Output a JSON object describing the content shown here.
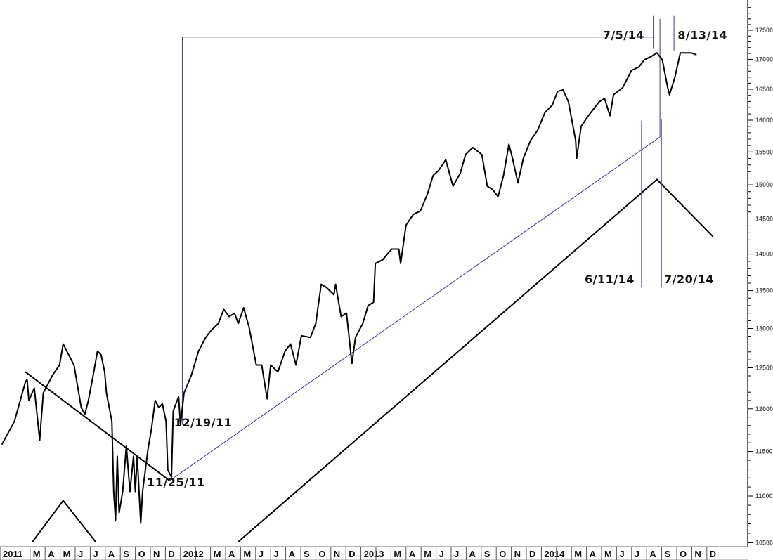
{
  "chart_data": {
    "type": "line",
    "title": "",
    "xlabel": "",
    "ylabel": "",
    "y_scale": "log",
    "ylim": [
      10500,
      17900
    ],
    "xlim": [
      2011.0,
      2015.14
    ],
    "grid": false,
    "y_ticks": [
      10500,
      11000,
      11500,
      12000,
      12500,
      13000,
      13500,
      14000,
      14500,
      15000,
      15500,
      16000,
      16500,
      17000,
      17500
    ],
    "x_tick_labels": [
      "2011",
      "",
      "M",
      "A",
      "M",
      "J",
      "J",
      "A",
      "S",
      "O",
      "N",
      "D",
      "2012",
      "",
      "M",
      "A",
      "M",
      "J",
      "J",
      "A",
      "S",
      "O",
      "N",
      "D",
      "2013",
      "",
      "M",
      "A",
      "M",
      "J",
      "J",
      "A",
      "S",
      "O",
      "N",
      "D",
      "2014",
      "",
      "M",
      "A",
      "M",
      "J",
      "J",
      "A",
      "S",
      "O",
      "N",
      "D"
    ],
    "series": [
      {
        "name": "index",
        "color": "#000000",
        "points": [
          [
            2011.01,
            11580
          ],
          [
            2011.08,
            11850
          ],
          [
            2011.14,
            12320
          ],
          [
            2011.15,
            12360
          ],
          [
            2011.16,
            12100
          ],
          [
            2011.19,
            12250
          ],
          [
            2011.22,
            11630
          ],
          [
            2011.24,
            12190
          ],
          [
            2011.29,
            12405
          ],
          [
            2011.33,
            12535
          ],
          [
            2011.35,
            12800
          ],
          [
            2011.37,
            12710
          ],
          [
            2011.41,
            12535
          ],
          [
            2011.45,
            12015
          ],
          [
            2011.47,
            11935
          ],
          [
            2011.49,
            12100
          ],
          [
            2011.52,
            12450
          ],
          [
            2011.54,
            12710
          ],
          [
            2011.56,
            12665
          ],
          [
            2011.58,
            12450
          ],
          [
            2011.59,
            12190
          ],
          [
            2011.62,
            11850
          ],
          [
            2011.63,
            11050
          ],
          [
            2011.64,
            10740
          ],
          [
            2011.65,
            11445
          ],
          [
            2011.66,
            10820
          ],
          [
            2011.68,
            11050
          ],
          [
            2011.7,
            11565
          ],
          [
            2011.72,
            11050
          ],
          [
            2011.74,
            11445
          ],
          [
            2011.75,
            11050
          ],
          [
            2011.76,
            11445
          ],
          [
            2011.78,
            10705
          ],
          [
            2011.79,
            11050
          ],
          [
            2011.82,
            11525
          ],
          [
            2011.84,
            11770
          ],
          [
            2011.86,
            12100
          ],
          [
            2011.88,
            12015
          ],
          [
            2011.9,
            12060
          ],
          [
            2011.92,
            11850
          ],
          [
            2011.93,
            11290
          ],
          [
            2011.95,
            11210
          ],
          [
            2011.96,
            11975
          ],
          [
            2011.99,
            12145
          ],
          [
            2012.0,
            11810
          ],
          [
            2012.02,
            12190
          ],
          [
            2012.06,
            12405
          ],
          [
            2012.1,
            12710
          ],
          [
            2012.14,
            12885
          ],
          [
            2012.17,
            12975
          ],
          [
            2012.21,
            13065
          ],
          [
            2012.24,
            13250
          ],
          [
            2012.27,
            13155
          ],
          [
            2012.3,
            13200
          ],
          [
            2012.32,
            13065
          ],
          [
            2012.35,
            13270
          ],
          [
            2012.38,
            13020
          ],
          [
            2012.42,
            12535
          ],
          [
            2012.45,
            12535
          ],
          [
            2012.48,
            12120
          ],
          [
            2012.5,
            12535
          ],
          [
            2012.54,
            12450
          ],
          [
            2012.58,
            12710
          ],
          [
            2012.61,
            12800
          ],
          [
            2012.64,
            12535
          ],
          [
            2012.67,
            12905
          ],
          [
            2012.72,
            12885
          ],
          [
            2012.75,
            13065
          ],
          [
            2012.78,
            13585
          ],
          [
            2012.81,
            13540
          ],
          [
            2012.85,
            13445
          ],
          [
            2012.86,
            13585
          ],
          [
            2012.89,
            13155
          ],
          [
            2012.92,
            13200
          ],
          [
            2012.95,
            12555
          ],
          [
            2012.97,
            12885
          ],
          [
            2013.01,
            13065
          ],
          [
            2013.04,
            13300
          ],
          [
            2013.07,
            13345
          ],
          [
            2013.08,
            13870
          ],
          [
            2013.12,
            13920
          ],
          [
            2013.17,
            14070
          ],
          [
            2013.21,
            14070
          ],
          [
            2013.22,
            13870
          ],
          [
            2013.25,
            14410
          ],
          [
            2013.29,
            14565
          ],
          [
            2013.33,
            14615
          ],
          [
            2013.37,
            14875
          ],
          [
            2013.4,
            15140
          ],
          [
            2013.43,
            15215
          ],
          [
            2013.47,
            15380
          ],
          [
            2013.51,
            14980
          ],
          [
            2013.55,
            15170
          ],
          [
            2013.58,
            15460
          ],
          [
            2013.62,
            15570
          ],
          [
            2013.67,
            15460
          ],
          [
            2013.7,
            14980
          ],
          [
            2013.73,
            14930
          ],
          [
            2013.76,
            14825
          ],
          [
            2013.79,
            15140
          ],
          [
            2013.82,
            15620
          ],
          [
            2013.84,
            15400
          ],
          [
            2013.87,
            15030
          ],
          [
            2013.9,
            15400
          ],
          [
            2013.94,
            15680
          ],
          [
            2013.98,
            15845
          ],
          [
            2014.02,
            16125
          ],
          [
            2014.06,
            16240
          ],
          [
            2014.09,
            16465
          ],
          [
            2014.12,
            16490
          ],
          [
            2014.15,
            16295
          ],
          [
            2014.19,
            15680
          ],
          [
            2014.195,
            15400
          ],
          [
            2014.22,
            15900
          ],
          [
            2014.26,
            16070
          ],
          [
            2014.32,
            16295
          ],
          [
            2014.35,
            16350
          ],
          [
            2014.38,
            16070
          ],
          [
            2014.4,
            16410
          ],
          [
            2014.45,
            16525
          ],
          [
            2014.5,
            16815
          ],
          [
            2014.54,
            16870
          ],
          [
            2014.57,
            16990
          ],
          [
            2014.61,
            17050
          ],
          [
            2014.64,
            17110
          ],
          [
            2014.67,
            16990
          ],
          [
            2014.7,
            16525
          ],
          [
            2014.71,
            16410
          ],
          [
            2014.74,
            16700
          ],
          [
            2014.77,
            17110
          ],
          [
            2014.8,
            17110
          ],
          [
            2014.83,
            17110
          ],
          [
            2014.86,
            17075
          ]
        ]
      }
    ],
    "overlays": [
      {
        "name": "downtrend-line",
        "color": "#000000",
        "points": [
          [
            2011.14,
            12450
          ],
          [
            2011.94,
            11170
          ]
        ]
      },
      {
        "name": "uptrend-line",
        "color": "#3a3a8c",
        "points": [
          [
            2011.94,
            11170
          ],
          [
            2014.655,
            15730
          ]
        ]
      },
      {
        "name": "cycle-line-large",
        "color": "#000000",
        "points": [
          [
            2012.32,
            10510
          ],
          [
            2014.64,
            15080
          ],
          [
            2014.95,
            14250
          ]
        ]
      },
      {
        "name": "cycle-line-small",
        "color": "#000000",
        "points": [
          [
            2011.18,
            10510
          ],
          [
            2011.35,
            10950
          ],
          [
            2011.53,
            10510
          ]
        ]
      },
      {
        "name": "bracket-line",
        "color": "#3a3a8c",
        "points": [
          [
            2012.01,
            11810
          ],
          [
            2012.01,
            17380
          ],
          [
            2014.62,
            17380
          ]
        ]
      },
      {
        "name": "marker-7-5-14",
        "color": "#3a3a8c",
        "points": [
          [
            2014.62,
            17750
          ],
          [
            2014.62,
            17180
          ]
        ]
      },
      {
        "name": "marker-8-13-14",
        "color": "#3a3a8c",
        "points": [
          [
            2014.735,
            17750
          ],
          [
            2014.735,
            17150
          ]
        ]
      },
      {
        "name": "marker-6-11-14",
        "color": "#3a3a8c",
        "points": [
          [
            2014.555,
            15990
          ],
          [
            2014.555,
            13540
          ]
        ]
      },
      {
        "name": "marker-7-20-14",
        "color": "#3a3a8c",
        "points": [
          [
            2014.665,
            16010
          ],
          [
            2014.665,
            13540
          ]
        ]
      },
      {
        "name": "marker-trend-end",
        "color": "#3a3a8c",
        "points": [
          [
            2014.657,
            17700
          ],
          [
            2014.657,
            15730
          ]
        ]
      }
    ],
    "annotations": [
      {
        "text": "7/5/14",
        "at": [
          2014.34,
          17350
        ]
      },
      {
        "text": "8/13/14",
        "at": [
          2014.755,
          17350
        ]
      },
      {
        "text": "6/11/14",
        "at": [
          2014.24,
          13600
        ]
      },
      {
        "text": "7/20/14",
        "at": [
          2014.68,
          13600
        ]
      },
      {
        "text": "12/19/11",
        "at": [
          2011.965,
          11790
        ]
      },
      {
        "text": "11/25/11",
        "at": [
          2011.815,
          11110
        ]
      }
    ]
  }
}
